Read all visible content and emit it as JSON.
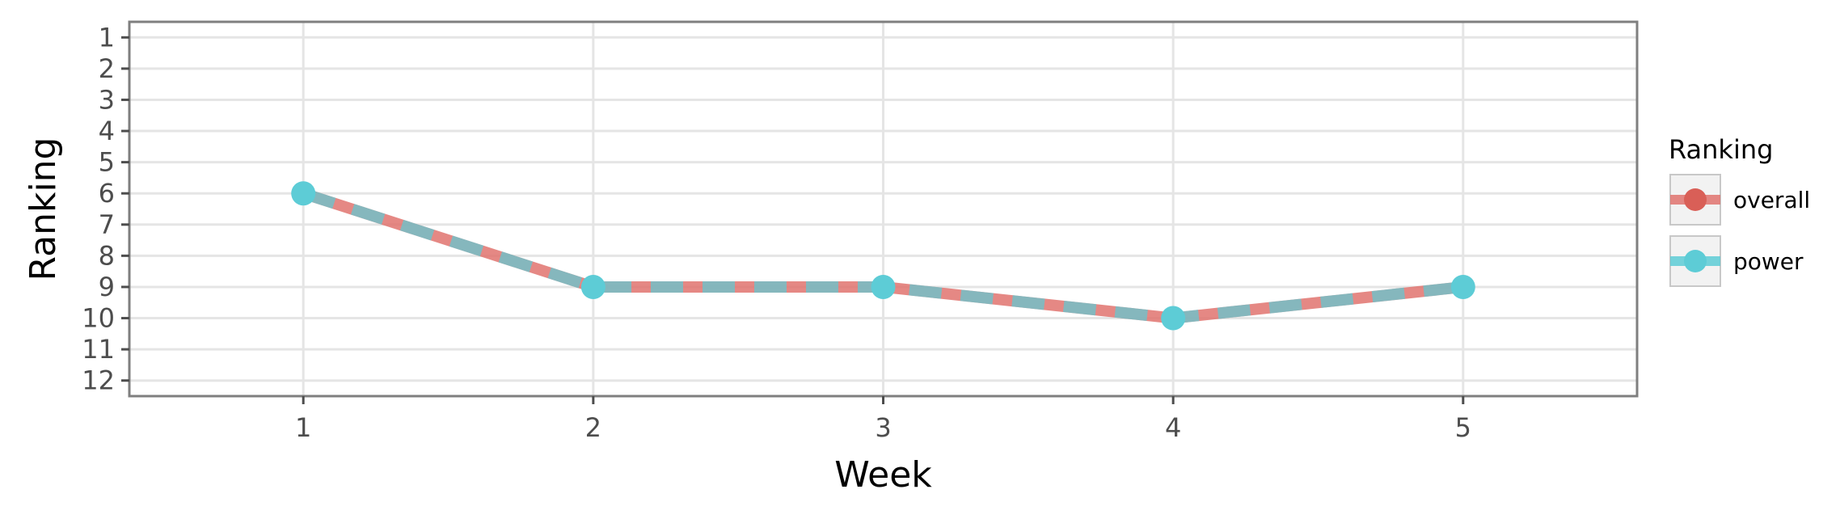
{
  "chart_data": {
    "type": "line",
    "title": "",
    "xlabel": "Week",
    "ylabel": "Ranking",
    "x": [
      1,
      2,
      3,
      4,
      5
    ],
    "x_ticks": [
      "1",
      "2",
      "3",
      "4",
      "5"
    ],
    "xlim": [
      0.4,
      5.6
    ],
    "y_ticks": [
      "1",
      "2",
      "3",
      "4",
      "5",
      "6",
      "7",
      "8",
      "9",
      "10",
      "11",
      "12"
    ],
    "ylim": [
      12.5,
      0.5
    ],
    "y_reversed": true,
    "grid": true,
    "legend_position": "right",
    "legend_title": "Ranking",
    "series": [
      {
        "name": "overall",
        "values": [
          6,
          9,
          9,
          10,
          9
        ],
        "color": "#E0736E",
        "line_style": "dashed"
      },
      {
        "name": "power",
        "values": [
          6,
          9,
          9,
          10,
          9
        ],
        "color": "#5DCCD6",
        "line_style": "solid"
      }
    ]
  }
}
